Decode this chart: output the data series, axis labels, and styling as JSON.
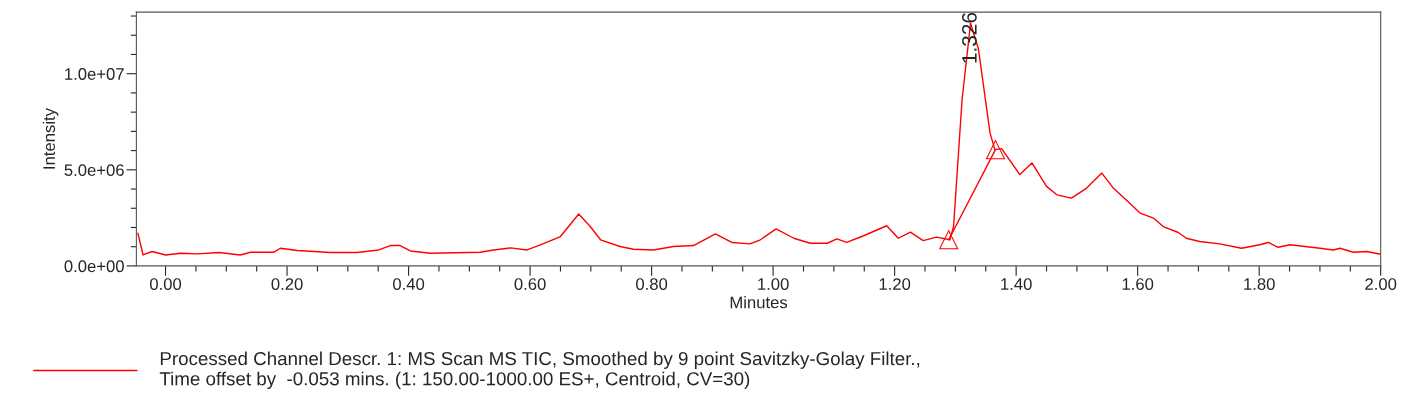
{
  "chart_data": {
    "type": "line",
    "xlabel": "Minutes",
    "ylabel": "Intensity",
    "xlim": [
      -0.048,
      2.0
    ],
    "ylim": [
      0,
      13200000
    ],
    "xticks": [
      {
        "value": 0.0,
        "label": "0.00"
      },
      {
        "value": 0.05,
        "label": null
      },
      {
        "value": 0.1,
        "label": null
      },
      {
        "value": 0.15,
        "label": null
      },
      {
        "value": 0.2,
        "label": "0.20"
      },
      {
        "value": 0.25,
        "label": null
      },
      {
        "value": 0.3,
        "label": null
      },
      {
        "value": 0.35,
        "label": null
      },
      {
        "value": 0.4,
        "label": "0.40"
      },
      {
        "value": 0.45,
        "label": null
      },
      {
        "value": 0.5,
        "label": null
      },
      {
        "value": 0.55,
        "label": null
      },
      {
        "value": 0.6,
        "label": "0.60"
      },
      {
        "value": 0.65,
        "label": null
      },
      {
        "value": 0.7,
        "label": null
      },
      {
        "value": 0.75,
        "label": null
      },
      {
        "value": 0.8,
        "label": "0.80"
      },
      {
        "value": 0.85,
        "label": null
      },
      {
        "value": 0.9,
        "label": null
      },
      {
        "value": 0.95,
        "label": null
      },
      {
        "value": 1.0,
        "label": "1.00"
      },
      {
        "value": 1.05,
        "label": null
      },
      {
        "value": 1.1,
        "label": null
      },
      {
        "value": 1.15,
        "label": null
      },
      {
        "value": 1.2,
        "label": "1.20"
      },
      {
        "value": 1.25,
        "label": null
      },
      {
        "value": 1.3,
        "label": null
      },
      {
        "value": 1.35,
        "label": null
      },
      {
        "value": 1.4,
        "label": "1.40"
      },
      {
        "value": 1.45,
        "label": null
      },
      {
        "value": 1.5,
        "label": null
      },
      {
        "value": 1.55,
        "label": null
      },
      {
        "value": 1.6,
        "label": "1.60"
      },
      {
        "value": 1.65,
        "label": null
      },
      {
        "value": 1.7,
        "label": null
      },
      {
        "value": 1.75,
        "label": null
      },
      {
        "value": 1.8,
        "label": "1.80"
      },
      {
        "value": 1.85,
        "label": null
      },
      {
        "value": 1.9,
        "label": null
      },
      {
        "value": 1.95,
        "label": null
      },
      {
        "value": 2.0,
        "label": "2.00"
      }
    ],
    "yticks": [
      {
        "value": 0,
        "label": "0.0e+00"
      },
      {
        "value": 1000000,
        "label": null
      },
      {
        "value": 2000000,
        "label": null
      },
      {
        "value": 3000000,
        "label": null
      },
      {
        "value": 4000000,
        "label": null
      },
      {
        "value": 5000000,
        "label": "5.0e+06"
      },
      {
        "value": 6000000,
        "label": null
      },
      {
        "value": 7000000,
        "label": null
      },
      {
        "value": 8000000,
        "label": null
      },
      {
        "value": 9000000,
        "label": null
      },
      {
        "value": 10000000,
        "label": "1.0e+07"
      },
      {
        "value": 11000000,
        "label": null
      },
      {
        "value": 12000000,
        "label": null
      },
      {
        "value": 13000000,
        "label": null
      }
    ],
    "grid": false,
    "legend": "bottom",
    "annotations": [
      {
        "text": "1.326",
        "x": 1.326,
        "y": 12630000
      }
    ],
    "series": [
      {
        "name": "Processed Channel Descr. 1: MS Scan MS TIC, Smoothed by 9 point Savitzky-Golay Filter.,\nTime offset by  -0.053 mins. (1: 150.00-1000.00 ES+, Centroid, CV=30)",
        "color": "#ff0000",
        "marker": "none",
        "x": [
          -0.0455,
          -0.037,
          -0.022,
          0.0,
          0.025,
          0.052,
          0.088,
          0.123,
          0.14,
          0.178,
          0.189,
          0.217,
          0.271,
          0.315,
          0.351,
          0.37,
          0.386,
          0.403,
          0.436,
          0.518,
          0.54,
          0.568,
          0.595,
          0.617,
          0.65,
          0.68,
          0.699,
          0.716,
          0.748,
          0.77,
          0.803,
          0.836,
          0.869,
          0.905,
          0.932,
          0.962,
          0.979,
          1.005,
          1.034,
          1.061,
          1.089,
          1.105,
          1.121,
          1.149,
          1.187,
          1.206,
          1.226,
          1.247,
          1.269,
          1.291,
          1.297,
          1.311,
          1.325,
          1.338,
          1.357,
          1.365,
          1.376,
          1.406,
          1.426,
          1.45,
          1.467,
          1.491,
          1.516,
          1.541,
          1.56,
          1.604,
          1.626,
          1.642,
          1.667,
          1.68,
          1.702,
          1.735,
          1.771,
          1.801,
          1.815,
          1.831,
          1.851,
          1.9,
          1.922,
          1.933,
          1.955,
          1.977,
          2.0
        ],
        "values": [
          1700000,
          570000,
          750000,
          570000,
          660000,
          630000,
          700000,
          570000,
          710000,
          710000,
          920000,
          800000,
          700000,
          700000,
          830000,
          1060000,
          1060000,
          780000,
          660000,
          710000,
          830000,
          940000,
          830000,
          1100000,
          1530000,
          2700000,
          2050000,
          1360000,
          1010000,
          870000,
          830000,
          1010000,
          1060000,
          1670000,
          1220000,
          1150000,
          1360000,
          1930000,
          1440000,
          1180000,
          1180000,
          1410000,
          1230000,
          1570000,
          2090000,
          1440000,
          1760000,
          1320000,
          1500000,
          1360000,
          2050000,
          8660000,
          12630000,
          11270000,
          6920000,
          6050000,
          6100000,
          4750000,
          5360000,
          4140000,
          3700000,
          3530000,
          4050000,
          4830000,
          4050000,
          2750000,
          2490000,
          2050000,
          1740000,
          1440000,
          1270000,
          1150000,
          920000,
          1100000,
          1220000,
          970000,
          1100000,
          920000,
          830000,
          920000,
          710000,
          750000,
          610000
        ]
      },
      {
        "color": "#ff0000",
        "marker": "triangle",
        "x": [
          1.289,
          1.366
        ],
        "values": [
          1360000,
          6050000
        ]
      }
    ]
  }
}
